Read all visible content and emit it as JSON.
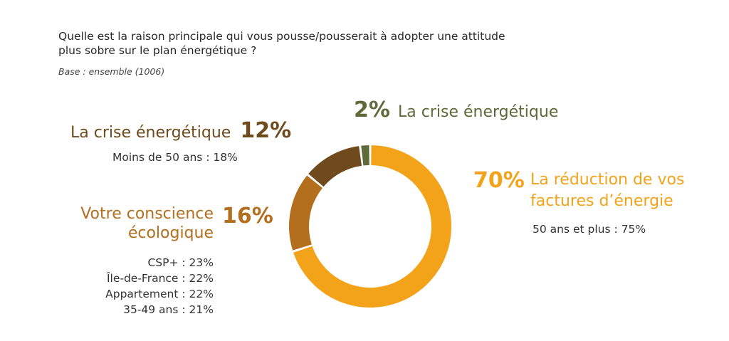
{
  "question": {
    "line1": "Quelle est la raison principale qui vous pousse/pousserait à adopter une attitude",
    "line2": "plus sobre sur le plan énergétique ?"
  },
  "base": "Base : ensemble (1006)",
  "chart_data": {
    "type": "pie",
    "variant": "donut",
    "title": "Quelle est la raison principale qui vous pousse/pousserait à adopter une attitude plus sobre sur le plan énergétique ?",
    "base": "Base : ensemble (1006)",
    "categories": [
      "La réduction de vos factures d’énergie",
      "Votre conscience écologique",
      "La crise énergétique",
      "La crise énergétique"
    ],
    "values": [
      70,
      16,
      12,
      2
    ],
    "colors": [
      "#f3a31a",
      "#b36f1e",
      "#6e4a1c",
      "#5e6a3a"
    ]
  },
  "labels": {
    "factures": {
      "pct": "70%",
      "name_line1": "La réduction de vos",
      "name_line2": "factures d’énergie",
      "sub": [
        "50 ans et plus : 75%"
      ]
    },
    "ecologique": {
      "pct": "16%",
      "name_line1": "Votre conscience",
      "name_line2": "écologique",
      "sub": [
        "CSP+ : 23%",
        "Île-de-France : 22%",
        "Appartement : 22%",
        "35-49 ans : 21%"
      ]
    },
    "crise12": {
      "pct": "12%",
      "name": "La crise énergétique",
      "sub": [
        "Moins de 50 ans : 18%"
      ]
    },
    "crise2": {
      "pct": "2%",
      "name": "La crise énergétique"
    }
  }
}
